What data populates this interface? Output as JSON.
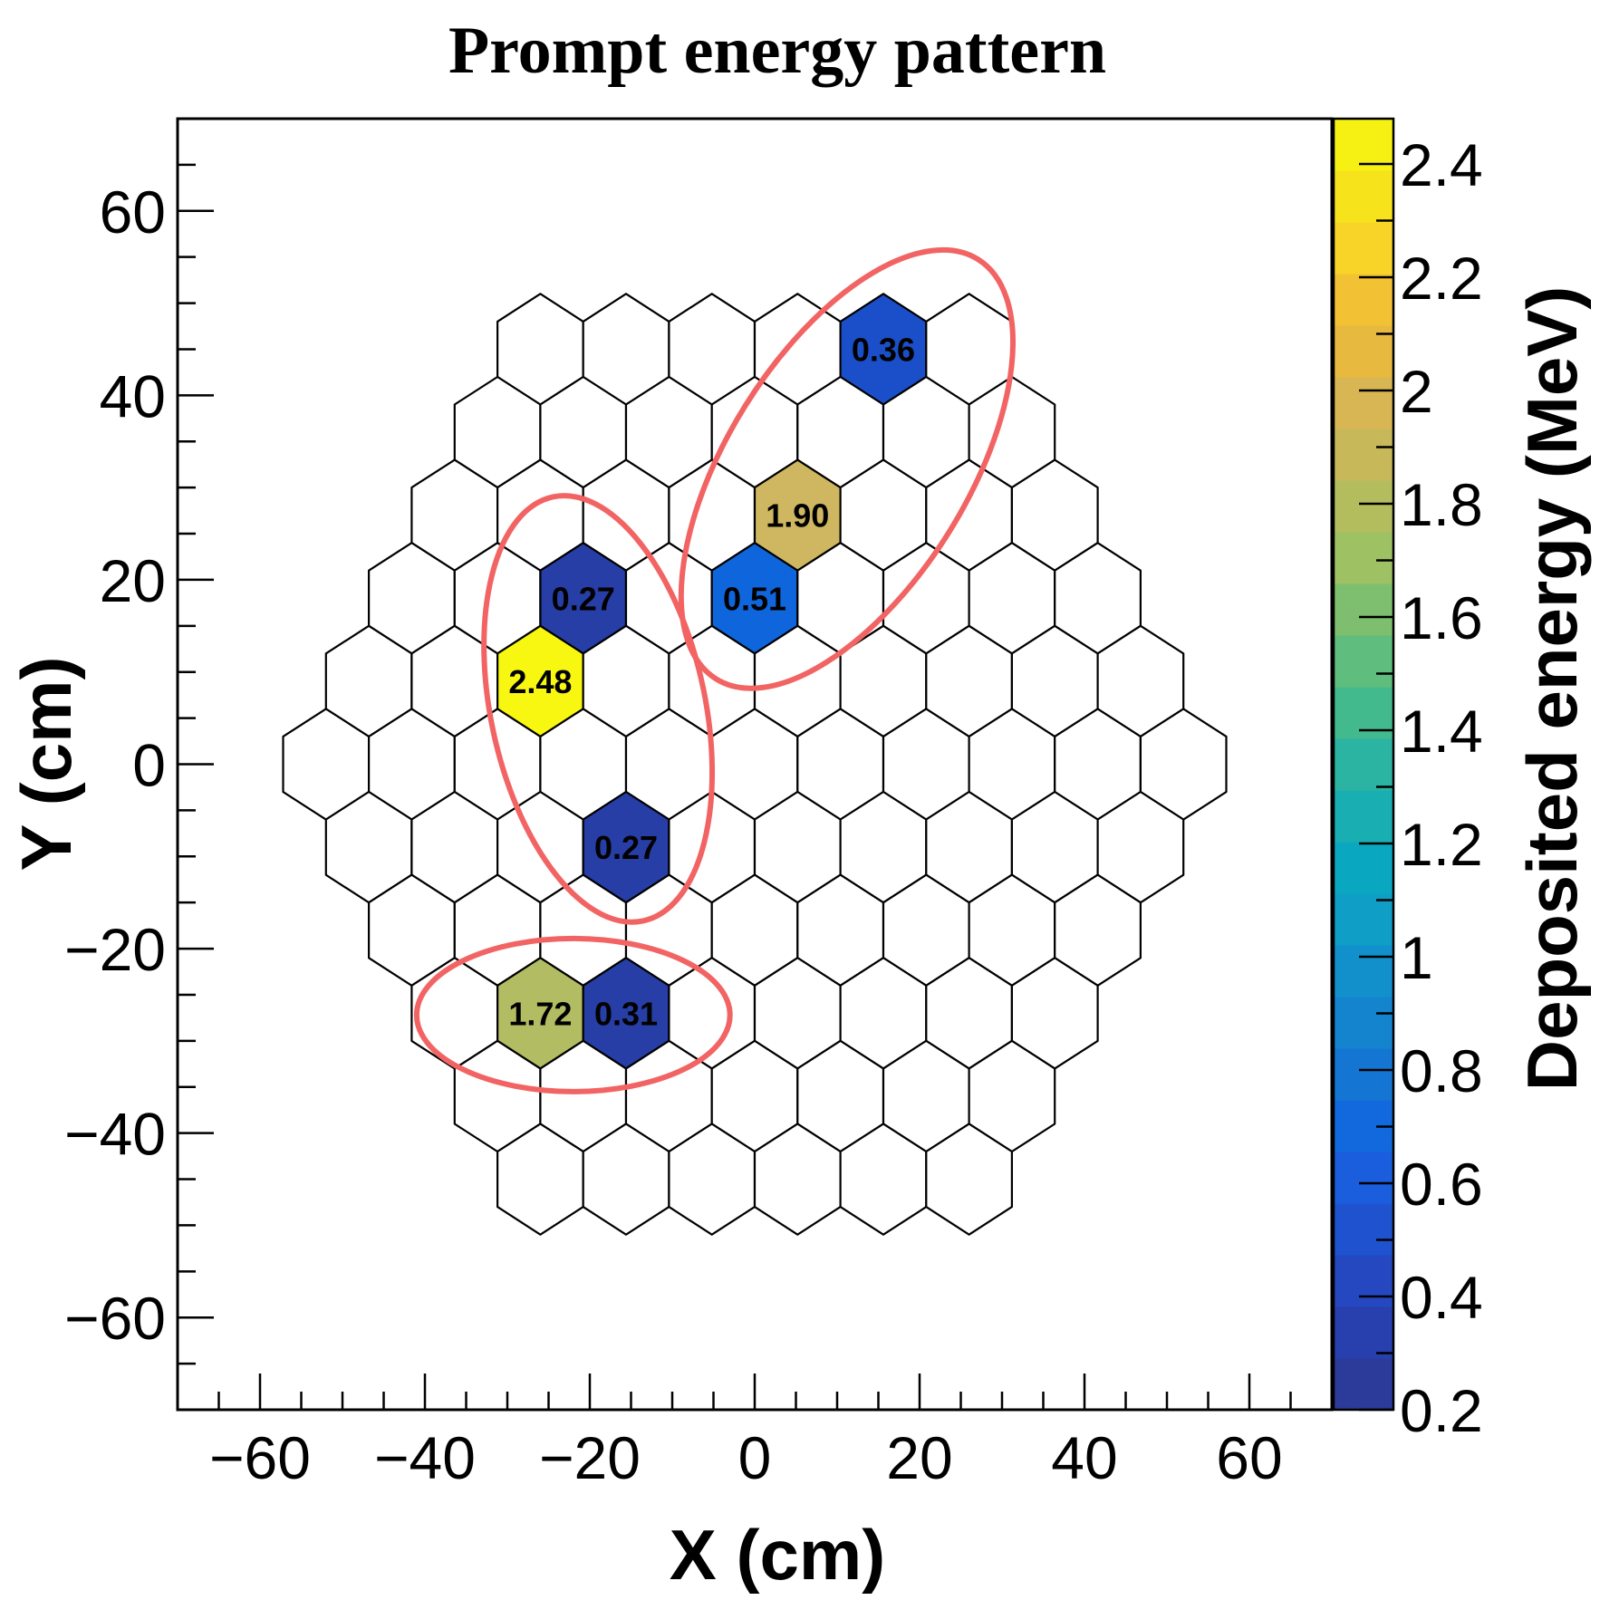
{
  "chart_data": {
    "type": "heatmap",
    "title": "Prompt energy pattern",
    "xlabel": "X (cm)",
    "ylabel": "Y (cm)",
    "colorbar_label": "Deposited energy (MeV)",
    "xlim": [
      -70,
      70
    ],
    "ylim": [
      -70,
      70
    ],
    "x_ticks": [
      {
        "value": -60,
        "label": "−60"
      },
      {
        "value": -40,
        "label": "−40"
      },
      {
        "value": -20,
        "label": "−20"
      },
      {
        "value": 0,
        "label": "0"
      },
      {
        "value": 20,
        "label": "20"
      },
      {
        "value": 40,
        "label": "40"
      },
      {
        "value": 60,
        "label": "60"
      }
    ],
    "y_ticks": [
      {
        "value": -60,
        "label": "−60"
      },
      {
        "value": -40,
        "label": "−40"
      },
      {
        "value": -20,
        "label": "−20"
      },
      {
        "value": 0,
        "label": "0"
      },
      {
        "value": 20,
        "label": "20"
      },
      {
        "value": 40,
        "label": "40"
      },
      {
        "value": 60,
        "label": "60"
      }
    ],
    "colorbar_range": [
      0.2,
      2.48
    ],
    "colorbar_ticks": [
      {
        "value": 0.2,
        "label": "0.2"
      },
      {
        "value": 0.4,
        "label": "0.4"
      },
      {
        "value": 0.6,
        "label": "0.6"
      },
      {
        "value": 0.8,
        "label": "0.8"
      },
      {
        "value": 1.0,
        "label": "1"
      },
      {
        "value": 1.2,
        "label": "1.2"
      },
      {
        "value": 1.4,
        "label": "1.4"
      },
      {
        "value": 1.6,
        "label": "1.6"
      },
      {
        "value": 1.8,
        "label": "1.8"
      },
      {
        "value": 2.0,
        "label": "2"
      },
      {
        "value": 2.2,
        "label": "2.2"
      },
      {
        "value": 2.4,
        "label": "2.4"
      }
    ],
    "colorbar_palette": [
      "#2c3a99",
      "#283fae",
      "#2547c0",
      "#1f52cf",
      "#1a5ede",
      "#1269de",
      "#1476d2",
      "#1484cf",
      "#1290cc",
      "#0e9ec6",
      "#0aa8c0",
      "#19aeb2",
      "#2bb4a2",
      "#43b98e",
      "#5fbd7d",
      "#7dbf6e",
      "#9ec164",
      "#b4bd5e",
      "#c7b85a",
      "#d8b653",
      "#e7b93f",
      "#f2c234",
      "#f8d428",
      "#f7e31c",
      "#f6f113"
    ],
    "hex_grid": {
      "cell_spacing_x": 10.4,
      "cell_spacing_y": 9.0,
      "row_counts": [
        {
          "row": 5,
          "count": 6
        },
        {
          "row": 4,
          "count": 7
        },
        {
          "row": 3,
          "count": 8
        },
        {
          "row": 2,
          "count": 9
        },
        {
          "row": 1,
          "count": 10
        },
        {
          "row": 0,
          "count": 11
        },
        {
          "row": -1,
          "count": 10
        },
        {
          "row": -2,
          "count": 9
        },
        {
          "row": -3,
          "count": 8
        },
        {
          "row": -4,
          "count": 7
        },
        {
          "row": -5,
          "count": 6
        }
      ]
    },
    "hits": [
      {
        "row": 5,
        "x": 15.6,
        "energy": 0.36,
        "label": "0.36",
        "color": "#1b4fc9"
      },
      {
        "row": 3,
        "x": 5.2,
        "energy": 1.9,
        "label": "1.90",
        "color": "#cfb761"
      },
      {
        "row": 2,
        "x": -20.8,
        "energy": 0.27,
        "label": "0.27",
        "color": "#263ea6"
      },
      {
        "row": 2,
        "x": 0.0,
        "energy": 0.51,
        "label": "0.51",
        "color": "#0f66dc"
      },
      {
        "row": 1,
        "x": -26.0,
        "energy": 2.48,
        "label": "2.48",
        "color": "#f7f711"
      },
      {
        "row": -1,
        "x": -15.6,
        "energy": 0.27,
        "label": "0.27",
        "color": "#263ea6"
      },
      {
        "row": -3,
        "x": -26.0,
        "energy": 1.72,
        "label": "1.72",
        "color": "#b2bc62"
      },
      {
        "row": -3,
        "x": -15.6,
        "energy": 0.31,
        "label": "0.31",
        "color": "#263ea6"
      }
    ],
    "annotations": [
      {
        "type": "ellipse",
        "cx": 11.2,
        "cy": 32.0,
        "rx": 30.0,
        "ry": 13.0,
        "rotation_deg": -58,
        "color": "#f26464"
      },
      {
        "type": "ellipse",
        "cx": -19.0,
        "cy": 6.0,
        "rx": 13.0,
        "ry": 23.5,
        "rotation_deg": -12,
        "color": "#f26464"
      },
      {
        "type": "ellipse",
        "cx": -22.0,
        "cy": -27.2,
        "rx": 19.0,
        "ry": 8.3,
        "rotation_deg": 0,
        "color": "#f26464"
      }
    ]
  }
}
